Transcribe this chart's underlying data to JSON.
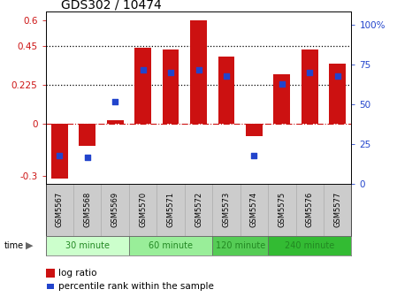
{
  "title": "GDS302 / 10474",
  "samples": [
    "GSM5567",
    "GSM5568",
    "GSM5569",
    "GSM5570",
    "GSM5571",
    "GSM5572",
    "GSM5573",
    "GSM5574",
    "GSM5575",
    "GSM5576",
    "GSM5577"
  ],
  "log_ratio": [
    -0.32,
    -0.13,
    0.02,
    0.44,
    0.43,
    0.6,
    0.39,
    -0.07,
    0.29,
    0.43,
    0.35
  ],
  "percentile": [
    18,
    17,
    52,
    72,
    70,
    72,
    68,
    18,
    63,
    70,
    68
  ],
  "bar_color": "#cc1111",
  "dot_color": "#2244cc",
  "ylim_left": [
    -0.35,
    0.65
  ],
  "ylim_right": [
    0,
    108.33
  ],
  "yticks_left": [
    -0.3,
    0,
    0.225,
    0.45,
    0.6
  ],
  "yticks_right": [
    0,
    25,
    50,
    75,
    100
  ],
  "hlines": [
    0.225,
    0.45
  ],
  "hline_zero": 0,
  "time_groups": [
    {
      "label": "30 minute",
      "samples": [
        "GSM5567",
        "GSM5568",
        "GSM5569"
      ],
      "color": "#ccffcc"
    },
    {
      "label": "60 minute",
      "samples": [
        "GSM5570",
        "GSM5571",
        "GSM5572"
      ],
      "color": "#99ee99"
    },
    {
      "label": "120 minute",
      "samples": [
        "GSM5573",
        "GSM5574"
      ],
      "color": "#55cc55"
    },
    {
      "label": "240 minute",
      "samples": [
        "GSM5575",
        "GSM5576",
        "GSM5577"
      ],
      "color": "#33bb33"
    }
  ],
  "legend_log_ratio": "log ratio",
  "legend_percentile": "percentile rank within the sample",
  "xlabel_time": "time",
  "bar_width": 0.6,
  "dot_size": 22,
  "bg_color": "#ffffff",
  "tick_label_color_left": "#cc1111",
  "tick_label_color_right": "#2244cc",
  "zero_line_color": "#cc1111",
  "dotted_line_color": "#000000",
  "label_bg": "#cccccc",
  "time_text_color": "#228822"
}
